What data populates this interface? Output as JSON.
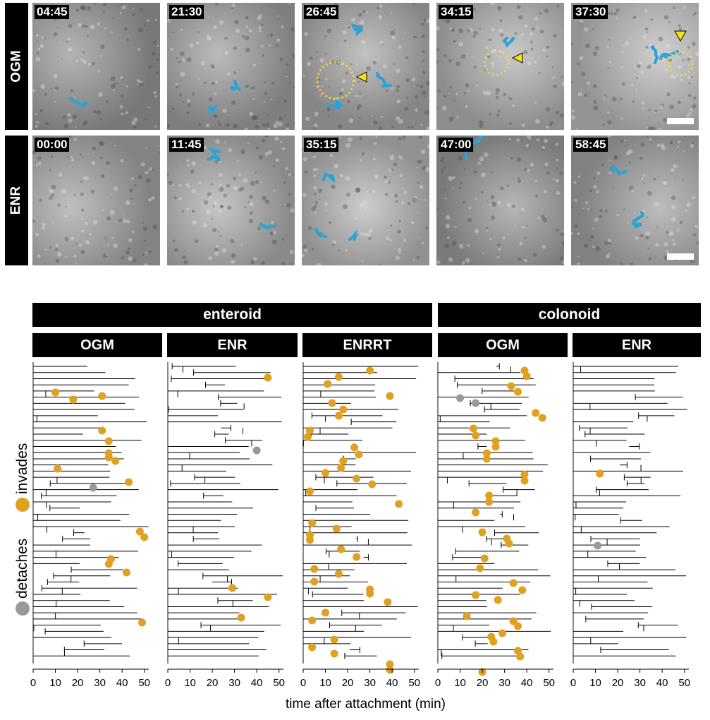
{
  "microscopy": {
    "rows": [
      {
        "label": "OGM",
        "frames": [
          "04:45",
          "21:30",
          "26:45",
          "34:15",
          "37:30"
        ]
      },
      {
        "label": "ENR",
        "frames": [
          "00:00",
          "11:45",
          "35:15",
          "47:00",
          "58:45"
        ]
      }
    ]
  },
  "headers": {
    "groups": [
      "enteroid",
      "colonoid"
    ],
    "panels": [
      "OGM",
      "ENR",
      "ENRRT",
      "OGM",
      "ENR"
    ]
  },
  "legend": {
    "invades": "invades",
    "detaches": "detaches",
    "invade_color": "#E0A020",
    "detach_color": "#999999"
  },
  "chart_data": {
    "type": "lineage-tree",
    "xlabel": "time after attachment (min)",
    "xlim": [
      0,
      52
    ],
    "xticks": [
      0,
      10,
      20,
      30,
      40,
      50
    ],
    "panels": [
      {
        "name": "enteroid OGM",
        "invade_events": [
          [
            10,
            35
          ],
          [
            31,
            40
          ],
          [
            18,
            45
          ],
          [
            31,
            89
          ],
          [
            34,
            104
          ],
          [
            34,
            121
          ],
          [
            34,
            127
          ],
          [
            37,
            132
          ],
          [
            11,
            143
          ],
          [
            43,
            162
          ],
          [
            48,
            232
          ],
          [
            50,
            240
          ],
          [
            35,
            271
          ],
          [
            34,
            278
          ],
          [
            42,
            290
          ],
          [
            49,
            361
          ]
        ],
        "detach_events": [
          [
            27,
            170
          ]
        ]
      },
      {
        "name": "enteroid ENR",
        "invade_events": [
          [
            45,
            14
          ],
          [
            29,
            312
          ],
          [
            45,
            325
          ],
          [
            33,
            354
          ]
        ],
        "detach_events": [
          [
            40,
            117
          ]
        ]
      },
      {
        "name": "enteroid ENRRT",
        "invade_events": [
          [
            30,
            4
          ],
          [
            16,
            13
          ],
          [
            11,
            23
          ],
          [
            39,
            40
          ],
          [
            13,
            50
          ],
          [
            18,
            59
          ],
          [
            16,
            68
          ],
          [
            3,
            89
          ],
          [
            2,
            98
          ],
          [
            23,
            113
          ],
          [
            25,
            123
          ],
          [
            18,
            132
          ],
          [
            17,
            142
          ],
          [
            10,
            149
          ],
          [
            24,
            157
          ],
          [
            31,
            165
          ],
          [
            3,
            175
          ],
          [
            43,
            193
          ],
          [
            4,
            220
          ],
          [
            15,
            228
          ],
          [
            3,
            237
          ],
          [
            3,
            244
          ],
          [
            17,
            257
          ],
          [
            24,
            268
          ],
          [
            5,
            285
          ],
          [
            16,
            292
          ],
          [
            5,
            303
          ],
          [
            30,
            314
          ],
          [
            30,
            320
          ],
          [
            38,
            332
          ],
          [
            10,
            347
          ],
          [
            4,
            358
          ],
          [
            14,
            385
          ],
          [
            4,
            396
          ],
          [
            14,
            405
          ],
          [
            39,
            420
          ],
          [
            39,
            428
          ]
        ],
        "detach_events": []
      },
      {
        "name": "colonoid OGM",
        "invade_events": [
          [
            39,
            4
          ],
          [
            40,
            12
          ],
          [
            33,
            26
          ],
          [
            36,
            34
          ],
          [
            44,
            64
          ],
          [
            47,
            71
          ],
          [
            16,
            86
          ],
          [
            17,
            96
          ],
          [
            26,
            104
          ],
          [
            26,
            112
          ],
          [
            22,
            121
          ],
          [
            22,
            129
          ],
          [
            39,
            151
          ],
          [
            39,
            160
          ],
          [
            23,
            181
          ],
          [
            23,
            190
          ],
          [
            17,
            205
          ],
          [
            20,
            233
          ],
          [
            31,
            242
          ],
          [
            32,
            249
          ],
          [
            21,
            270
          ],
          [
            19,
            284
          ],
          [
            34,
            305
          ],
          [
            38,
            315
          ],
          [
            17,
            322
          ],
          [
            27,
            329
          ],
          [
            13,
            352
          ],
          [
            34,
            359
          ],
          [
            36,
            366
          ],
          [
            24,
            381
          ],
          [
            29,
            376
          ],
          [
            25,
            388
          ],
          [
            36,
            401
          ],
          [
            37,
            409
          ],
          [
            20,
            431
          ]
        ],
        "detach_events": [
          [
            10,
            43
          ],
          [
            17,
            50
          ]
        ]
      },
      {
        "name": "colonoid ENR",
        "invade_events": [
          [
            12,
            150
          ]
        ],
        "detach_events": [
          [
            11,
            252
          ]
        ]
      }
    ]
  }
}
